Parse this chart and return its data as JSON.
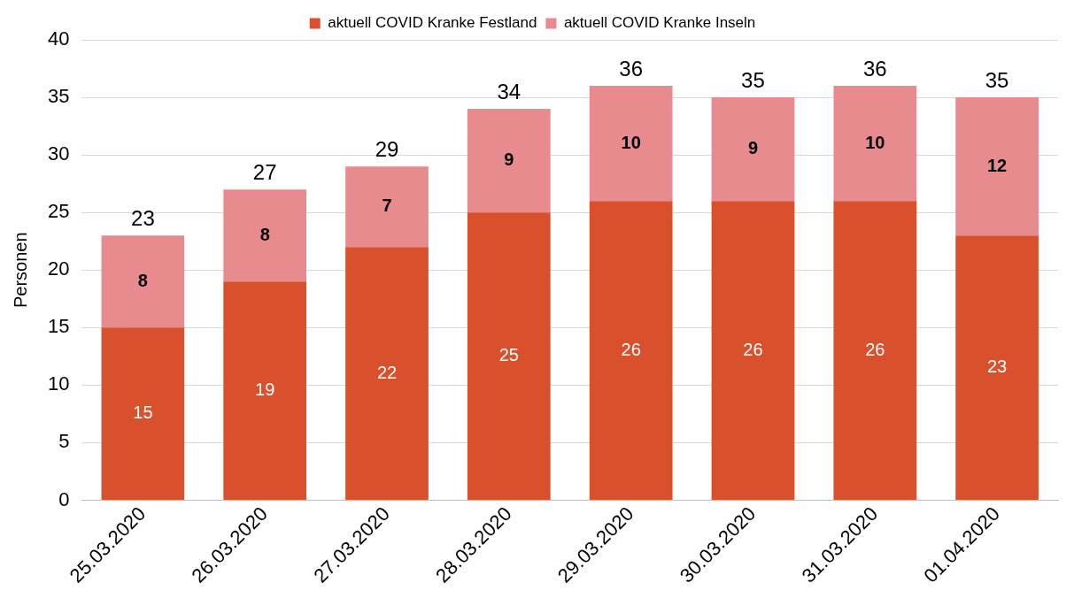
{
  "chart_data": {
    "type": "bar",
    "stacked": true,
    "ylabel": "Personen",
    "categories": [
      "25.03.2020",
      "26.03.2020",
      "27.03.2020",
      "28.03.2020",
      "29.03.2020",
      "30.03.2020",
      "31.03.2020",
      "01.04.2020"
    ],
    "series": [
      {
        "name": "aktuell COVID Kranke Festland",
        "color": "#d9512c",
        "values": [
          15,
          19,
          22,
          25,
          26,
          26,
          26,
          23
        ]
      },
      {
        "name": "aktuell COVID Kranke Inseln",
        "color": "#e88b8f",
        "values": [
          8,
          8,
          7,
          9,
          10,
          9,
          10,
          12
        ]
      }
    ],
    "totals": [
      "23",
      "27",
      "29",
      "34",
      "36",
      "35",
      "36",
      "35"
    ],
    "data_labels": true,
    "ylim": [
      0,
      40
    ],
    "yticks": [
      0,
      5,
      10,
      15,
      20,
      25,
      30,
      35,
      40
    ],
    "grid": "y",
    "legend": "top"
  }
}
